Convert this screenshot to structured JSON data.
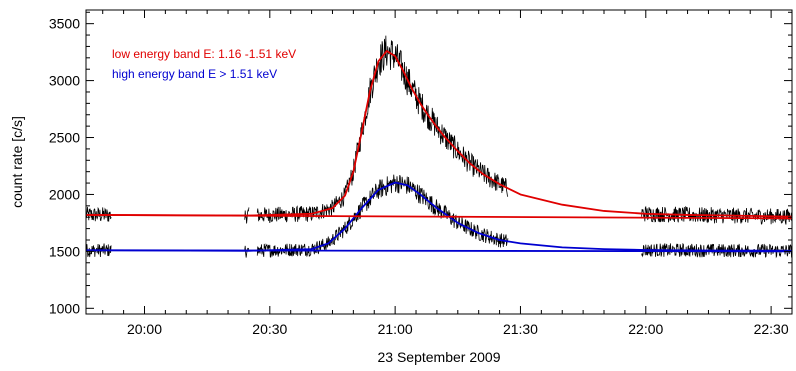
{
  "chart_data": {
    "type": "line",
    "title": "",
    "xlabel": "23 September 2009",
    "ylabel": "count rate [c/s]",
    "xlim": [
      "19:46",
      "22:35"
    ],
    "ylim": [
      950,
      3620
    ],
    "x_tick_labels": [
      "20:00",
      "20:30",
      "21:00",
      "21:30",
      "22:00",
      "22:30"
    ],
    "y_tick_labels": [
      "1000",
      "1500",
      "2000",
      "2500",
      "3000",
      "3500"
    ],
    "x_ticks": [
      "20:00",
      "20:30",
      "21:00",
      "21:30",
      "22:00",
      "22:30"
    ],
    "y_ticks": [
      1000,
      1500,
      2000,
      2500,
      3000,
      3500
    ],
    "grid": false,
    "legend": {
      "placement": "top-left"
    },
    "series": [
      {
        "name": "low energy band E: 1.16 -1.51 keV",
        "color": "#e00000",
        "kind": "fit",
        "x": [
          "19:46",
          "20:25",
          "20:40",
          "20:45",
          "20:48",
          "20:50",
          "20:52",
          "20:54",
          "20:56",
          "20:58",
          "21:00",
          "21:02",
          "21:04",
          "21:06",
          "21:08",
          "21:10",
          "21:12",
          "21:15",
          "21:18",
          "21:21",
          "21:25",
          "21:30",
          "21:40",
          "21:50",
          "22:00",
          "22:10",
          "22:20",
          "22:35"
        ],
        "y": [
          1820,
          1815,
          1830,
          1880,
          1990,
          2200,
          2550,
          2910,
          3170,
          3260,
          3215,
          3080,
          2930,
          2800,
          2690,
          2590,
          2500,
          2380,
          2270,
          2180,
          2090,
          2000,
          1910,
          1855,
          1830,
          1820,
          1815,
          1805
        ]
      },
      {
        "name": "high energy band E > 1.51 keV",
        "color": "#0000d0",
        "kind": "fit",
        "x": [
          "19:46",
          "20:25",
          "20:40",
          "20:44",
          "20:48",
          "20:52",
          "20:56",
          "21:00",
          "21:03",
          "21:06",
          "21:10",
          "21:15",
          "21:20",
          "21:25",
          "21:30",
          "21:40",
          "21:50",
          "22:00",
          "22:15",
          "22:35"
        ],
        "y": [
          1510,
          1505,
          1520,
          1570,
          1700,
          1880,
          2040,
          2105,
          2080,
          2000,
          1880,
          1750,
          1660,
          1600,
          1570,
          1535,
          1520,
          1512,
          1508,
          1505
        ]
      },
      {
        "name": "",
        "color": "#e00000",
        "kind": "baseline",
        "x": [
          "19:46",
          "22:35"
        ],
        "y": [
          1820,
          1790
        ]
      },
      {
        "name": "",
        "color": "#0000d0",
        "kind": "baseline",
        "x": [
          "19:46",
          "22:35"
        ],
        "y": [
          1510,
          1500
        ]
      }
    ],
    "observed_data": {
      "color": "#000000",
      "description_free": true,
      "segments": [
        {
          "x_start": "19:46",
          "x_end": "19:52"
        },
        {
          "x_start": "20:24",
          "x_end": "20:25"
        },
        {
          "x_start": "20:27",
          "x_end": "21:27"
        },
        {
          "x_start": "21:59",
          "x_end": "22:35"
        }
      ]
    }
  }
}
